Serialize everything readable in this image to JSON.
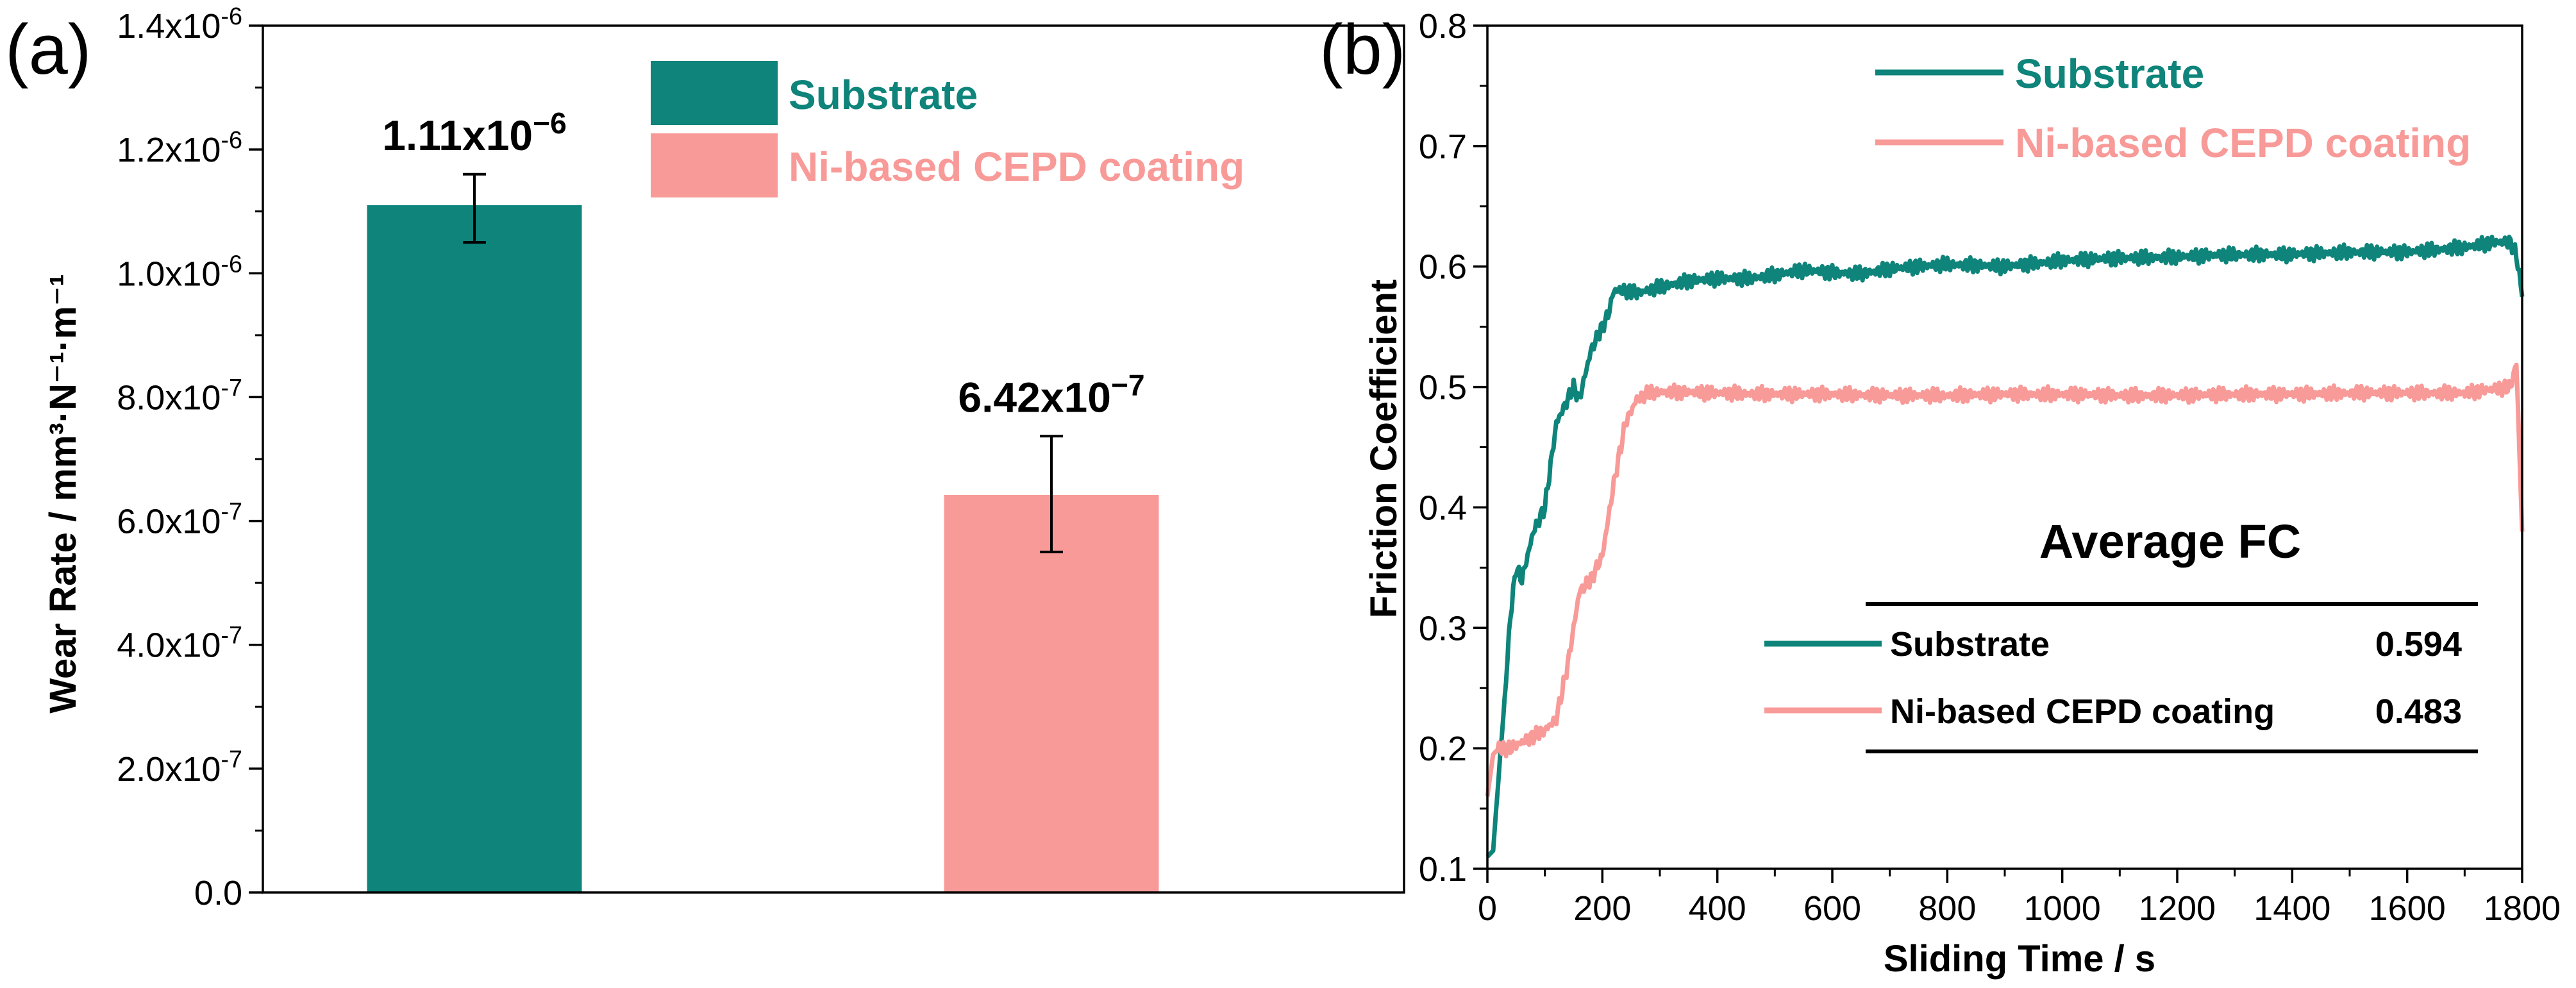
{
  "colors": {
    "substrate": "#0E847A",
    "coating": "#F89A98",
    "axis": "#000000"
  },
  "chart_data": [
    {
      "panel": "(a)",
      "type": "bar",
      "categories": [
        "Substrate",
        "Ni-based CEPD coating"
      ],
      "values": [
        1.11e-06,
        6.42e-07
      ],
      "errors": [
        [
          1.05e-06,
          1.16e-06
        ],
        [
          5.5e-07,
          7.37e-07
        ]
      ],
      "value_labels": [
        "1.11x10",
        "6.42x10"
      ],
      "value_label_exponents": [
        "−6",
        "−7"
      ],
      "ylabel": "Wear Rate / mm³·N⁻¹·m⁻¹",
      "ylim": [
        0,
        1.4e-06
      ],
      "yticks": [
        {
          "value": 0,
          "label": "0.0",
          "exp": ""
        },
        {
          "value": 2e-07,
          "label": "2.0x10",
          "exp": "-7"
        },
        {
          "value": 4e-07,
          "label": "4.0x10",
          "exp": "-7"
        },
        {
          "value": 6e-07,
          "label": "6.0x10",
          "exp": "-7"
        },
        {
          "value": 8e-07,
          "label": "8.0x10",
          "exp": "-7"
        },
        {
          "value": 1e-06,
          "label": "1.0x10",
          "exp": "-6"
        },
        {
          "value": 1.2e-06,
          "label": "1.2x10",
          "exp": "-6"
        },
        {
          "value": 1.4e-06,
          "label": "1.4x10",
          "exp": "-6"
        }
      ],
      "legend": [
        "Substrate",
        "Ni-based CEPD coating"
      ]
    },
    {
      "panel": "(b)",
      "type": "line",
      "xlabel": "Sliding Time / s",
      "ylabel": "Friction Coefficient",
      "xlim": [
        0,
        1800
      ],
      "ylim": [
        0.1,
        0.8
      ],
      "xticks": [
        "0",
        "200",
        "400",
        "600",
        "800",
        "1000",
        "1200",
        "1400",
        "1600",
        "1800"
      ],
      "yticks": [
        "0.1",
        "0.2",
        "0.3",
        "0.4",
        "0.5",
        "0.6",
        "0.7",
        "0.8"
      ],
      "series": [
        {
          "name": "Substrate",
          "x": [
            0,
            10,
            20,
            30,
            40,
            50,
            60,
            70,
            80,
            100,
            120,
            130,
            140,
            150,
            160,
            170,
            180,
            200,
            210,
            220,
            240,
            260,
            300,
            350,
            400,
            450,
            500,
            550,
            600,
            650,
            700,
            800,
            900,
            1000,
            1100,
            1200,
            1300,
            1400,
            1500,
            1600,
            1700,
            1750,
            1780,
            1790,
            1800
          ],
          "y": [
            0.11,
            0.115,
            0.18,
            0.24,
            0.31,
            0.35,
            0.34,
            0.36,
            0.38,
            0.4,
            0.47,
            0.48,
            0.49,
            0.5,
            0.49,
            0.51,
            0.53,
            0.55,
            0.56,
            0.58,
            0.58,
            0.578,
            0.583,
            0.588,
            0.59,
            0.59,
            0.593,
            0.597,
            0.595,
            0.594,
            0.598,
            0.602,
            0.6,
            0.605,
            0.607,
            0.608,
            0.61,
            0.61,
            0.612,
            0.612,
            0.616,
            0.62,
            0.62,
            0.61,
            0.575
          ]
        },
        {
          "name": "Ni-based CEPD coating",
          "x": [
            0,
            10,
            20,
            40,
            60,
            80,
            100,
            120,
            140,
            150,
            160,
            180,
            200,
            220,
            240,
            260,
            280,
            300,
            400,
            500,
            600,
            700,
            800,
            900,
            1000,
            1100,
            1200,
            1300,
            1400,
            1500,
            1600,
            1700,
            1780,
            1790,
            1800
          ],
          "y": [
            0.16,
            0.195,
            0.2,
            0.2,
            0.205,
            0.21,
            0.215,
            0.225,
            0.27,
            0.3,
            0.33,
            0.34,
            0.36,
            0.42,
            0.47,
            0.49,
            0.495,
            0.496,
            0.495,
            0.494,
            0.494,
            0.493,
            0.493,
            0.494,
            0.494,
            0.493,
            0.493,
            0.494,
            0.494,
            0.495,
            0.495,
            0.495,
            0.5,
            0.52,
            0.38
          ]
        }
      ],
      "legend": [
        "Substrate",
        "Ni-based CEPD coating"
      ],
      "average_fc": {
        "title": "Average FC",
        "rows": [
          {
            "name": "Substrate",
            "value": "0.594"
          },
          {
            "name": "Ni-based CEPD coating",
            "value": "0.483"
          }
        ]
      }
    }
  ]
}
